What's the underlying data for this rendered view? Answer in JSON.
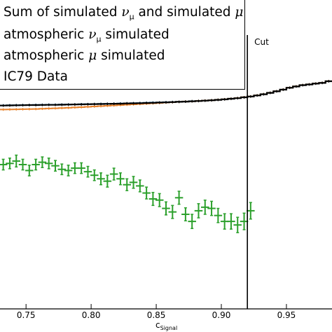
{
  "chart_data": {
    "type": "line",
    "title": "",
    "xlabel": "c",
    "xlabel_subscript": "Signal",
    "ylabel": "",
    "xlim": [
      0.73,
      0.985
    ],
    "x_ticks": [
      0.75,
      0.8,
      0.85,
      0.9,
      0.95
    ],
    "x_tick_labels": [
      "0.75",
      "0.80",
      "0.85",
      "0.90",
      "0.95"
    ],
    "cut": {
      "x": 0.92,
      "label": "Cut"
    },
    "bin_width": 0.005,
    "legend_placement": "top-left",
    "series": [
      {
        "name": "Sum of simulated νμ and simulated μ",
        "style": "step",
        "color": "#2b7bb9",
        "x_start": 0.73,
        "values": [
          0.5,
          0.499,
          0.498,
          0.497,
          0.497,
          0.496,
          0.495,
          0.494,
          0.494,
          0.493,
          0.492,
          0.491,
          0.49,
          0.489,
          0.488,
          0.487,
          0.486,
          0.485,
          0.484,
          0.482,
          0.481,
          0.48,
          0.478,
          0.476,
          0.475,
          0.473,
          0.471,
          0.469,
          0.467,
          0.464,
          0.462,
          0.459,
          0.456,
          0.452,
          0.448,
          0.443,
          0.438,
          0.431,
          0.424,
          0.415,
          0.405,
          0.393,
          0.38,
          0.366,
          0.35,
          0.339,
          0.328,
          0.322,
          0.315,
          0.309,
          0.295
        ]
      },
      {
        "name": "atmospheric νμ simulated",
        "style": "step",
        "color": "#e8822c",
        "x_start": 0.73,
        "values": [
          0.535,
          0.534,
          0.533,
          0.532,
          0.531,
          0.53,
          0.528,
          0.526,
          0.524,
          0.522,
          0.52,
          0.517,
          0.515,
          0.512,
          0.509,
          0.506,
          0.503,
          0.5,
          0.497,
          0.494,
          0.491,
          0.488,
          0.485,
          0.482,
          0.479,
          0.476,
          0.473,
          0.47,
          0.467,
          0.465,
          0.462,
          0.459,
          0.456,
          0.452,
          0.448,
          0.443,
          0.438,
          0.431,
          0.424,
          0.415,
          0.405,
          0.393,
          0.38,
          0.366,
          0.35,
          0.339,
          0.328,
          0.322,
          0.315,
          0.309,
          0.295
        ]
      },
      {
        "name": "atmospheric μ simulated",
        "style": "errorbar",
        "color": "#2ca02c",
        "x_start": 0.7325,
        "values": [
          1.0,
          0.99,
          0.97,
          1.0,
          1.05,
          1.0,
          0.98,
          0.99,
          1.01,
          1.04,
          1.05,
          1.03,
          1.03,
          1.06,
          1.09,
          1.12,
          1.14,
          1.08,
          1.12,
          1.17,
          1.15,
          1.18,
          1.24,
          1.29,
          1.3,
          1.37,
          1.4,
          1.28,
          1.42,
          1.48,
          1.39,
          1.36,
          1.37,
          1.43,
          1.48,
          1.48,
          1.51,
          1.48,
          1.39
        ],
        "yerr": [
          0.045,
          0.045,
          0.05,
          0.045,
          0.045,
          0.045,
          0.045,
          0.045,
          0.045,
          0.045,
          0.045,
          0.045,
          0.045,
          0.045,
          0.045,
          0.05,
          0.05,
          0.05,
          0.05,
          0.05,
          0.05,
          0.05,
          0.05,
          0.055,
          0.055,
          0.055,
          0.055,
          0.055,
          0.055,
          0.06,
          0.06,
          0.06,
          0.06,
          0.06,
          0.065,
          0.065,
          0.065,
          0.07,
          0.07
        ]
      },
      {
        "name": "IC79 Data",
        "style": "step",
        "color": "#000000",
        "x_start": 0.73,
        "values": [
          0.501,
          0.5,
          0.499,
          0.498,
          0.497,
          0.497,
          0.496,
          0.495,
          0.495,
          0.494,
          0.493,
          0.492,
          0.491,
          0.49,
          0.489,
          0.488,
          0.487,
          0.486,
          0.485,
          0.483,
          0.482,
          0.481,
          0.479,
          0.478,
          0.476,
          0.474,
          0.472,
          0.47,
          0.468,
          0.465,
          0.463,
          0.46,
          0.457,
          0.453,
          0.449,
          0.444,
          0.439,
          0.432,
          0.425,
          0.416,
          0.406,
          0.394,
          0.381,
          0.367,
          0.351,
          0.34,
          0.329,
          0.323,
          0.316,
          0.31,
          0.296
        ]
      }
    ]
  },
  "legend": {
    "items": [
      {
        "text": "Sum of simulated ",
        "sym1": "ν",
        "sub1": "μ",
        "mid": " and simulated ",
        "sym2": "μ",
        "sub2": ""
      },
      {
        "text": "atmospheric ",
        "sym1": "ν",
        "sub1": "μ",
        "mid": " simulated",
        "sym2": "",
        "sub2": ""
      },
      {
        "text": "atmospheric ",
        "sym1": "μ",
        "sub1": "",
        "mid": " simulated",
        "sym2": "",
        "sub2": ""
      },
      {
        "text": "IC79 Data",
        "sym1": "",
        "sub1": "",
        "mid": "",
        "sym2": "",
        "sub2": ""
      }
    ]
  }
}
